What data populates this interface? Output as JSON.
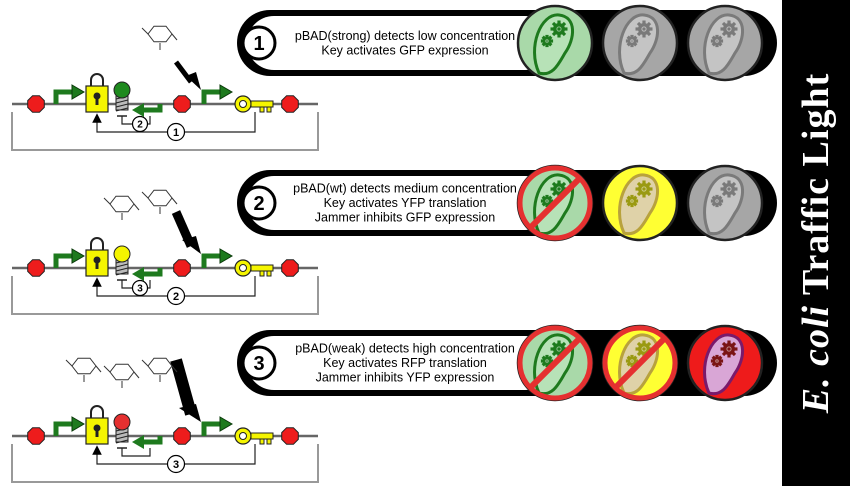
{
  "sidebar": {
    "title_italic": "E. coli",
    "title_rest": "Traffic Light"
  },
  "colors": {
    "green": "#1e7a1e",
    "yellow": "#f5f500",
    "red": "#e53030",
    "gray": "#8f8f8f",
    "black": "#000000"
  },
  "panels": [
    {
      "number": "1",
      "lines": [
        "pBAD(strong) detects low concentration",
        "Key activates GFP expression"
      ],
      "lights": [
        "green",
        "gray",
        "gray"
      ],
      "crossed": [
        false,
        false,
        false
      ]
    },
    {
      "number": "2",
      "lines": [
        "pBAD(wt) detects medium concentration",
        "Key activates YFP translation",
        "Jammer inhibits GFP expression"
      ],
      "lights": [
        "green",
        "yellow",
        "gray"
      ],
      "crossed": [
        true,
        false,
        false
      ]
    },
    {
      "number": "3",
      "lines": [
        "pBAD(weak) detects high concentration",
        "Key activates RFP translation",
        "Jammer inhibits YFP expression"
      ],
      "lights": [
        "green",
        "yellow",
        "red"
      ],
      "crossed": [
        true,
        true,
        false
      ]
    }
  ],
  "circuits": [
    {
      "loop_label": "1",
      "inner_label": "2",
      "jammer_color": "green",
      "sugar_rings": 1
    },
    {
      "loop_label": "2",
      "inner_label": "3",
      "jammer_color": "yellow",
      "sugar_rings": 2
    },
    {
      "loop_label": "3",
      "inner_label": "",
      "jammer_color": "red",
      "sugar_rings": 3
    }
  ]
}
